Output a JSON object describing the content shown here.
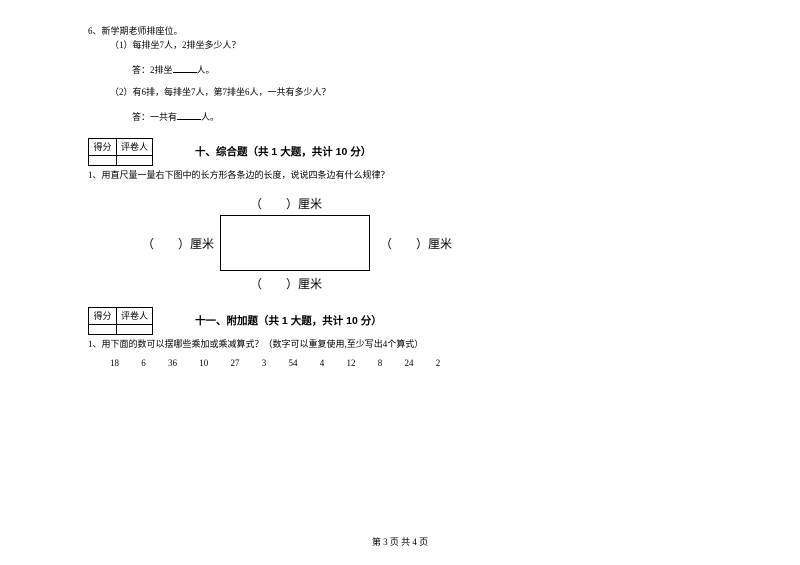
{
  "q6": {
    "stem": "6、新学期老师排座位。",
    "p1": "（1）每排坐7人，2排坐多少人？",
    "a1_prefix": "答：2排坐",
    "a1_suffix": "人。",
    "p2": "（2）有6排，每排坐7人，第7排坐6人，一共有多少人？",
    "a2_prefix": "答：一共有",
    "a2_suffix": "人。"
  },
  "score": {
    "col1": "得分",
    "col2": "评卷人"
  },
  "section10": {
    "title": "十、综合题（共 1 大题，共计 10 分）",
    "q1": "1、用直尺量一量右下图中的长方形各条边的长度，说说四条边有什么规律？",
    "cm": "厘米",
    "paren_blank": "（　　）"
  },
  "section11": {
    "title": "十一、附加题（共 1 大题，共计 10 分）",
    "q1": "1、用下面的数可以摆哪些乘加或乘减算式？（数字可以重复使用,至少写出4个算式）",
    "nums": [
      "18",
      "6",
      "36",
      "10",
      "27",
      "3",
      "54",
      "4",
      "12",
      "8",
      "24",
      "2"
    ]
  },
  "footer": "第 3 页 共 4 页"
}
